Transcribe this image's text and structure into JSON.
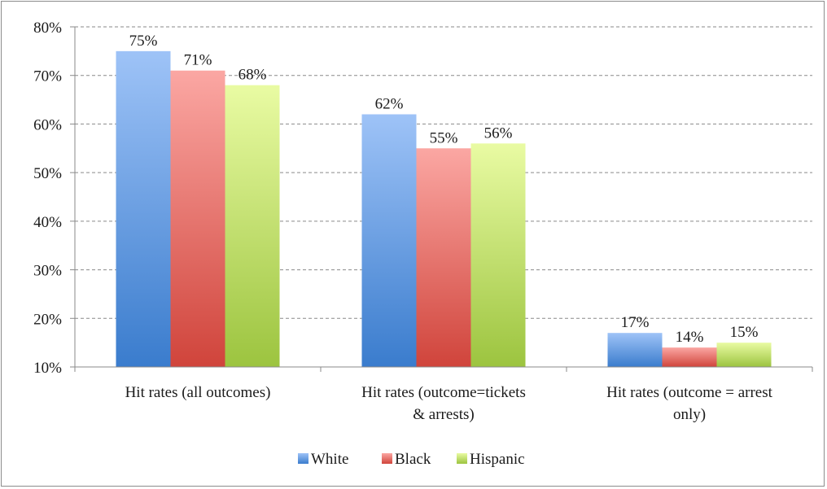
{
  "chart_data": {
    "type": "bar",
    "categories": [
      [
        "Hit rates (all outcomes)"
      ],
      [
        "Hit rates (outcome=tickets",
        "& arrests)"
      ],
      [
        "Hit rates (outcome = arrest",
        "only)"
      ]
    ],
    "series": [
      {
        "name": "White",
        "values": [
          75,
          62,
          17
        ],
        "labels": [
          "75%",
          "62%",
          "17%"
        ],
        "color_top": "#9ec3f7",
        "color_bottom": "#3a7ccd"
      },
      {
        "name": "Black",
        "values": [
          71,
          55,
          14
        ],
        "labels": [
          "71%",
          "55%",
          "14%"
        ],
        "color_top": "#fba7a3",
        "color_bottom": "#d0443b"
      },
      {
        "name": "Hispanic",
        "values": [
          68,
          56,
          15
        ],
        "labels": [
          "68%",
          "56%",
          "15%"
        ],
        "color_top": "#e9fba3",
        "color_bottom": "#9cc43f"
      }
    ],
    "ylim": [
      10,
      80
    ],
    "yticks": [
      10,
      20,
      30,
      40,
      50,
      60,
      70,
      80
    ],
    "ytick_labels": [
      "10%",
      "20%",
      "30%",
      "40%",
      "50%",
      "60%",
      "70%",
      "80%"
    ],
    "grid": "horizontal-dashed",
    "legend": "bottom",
    "title": "",
    "xlabel": "",
    "ylabel": ""
  }
}
